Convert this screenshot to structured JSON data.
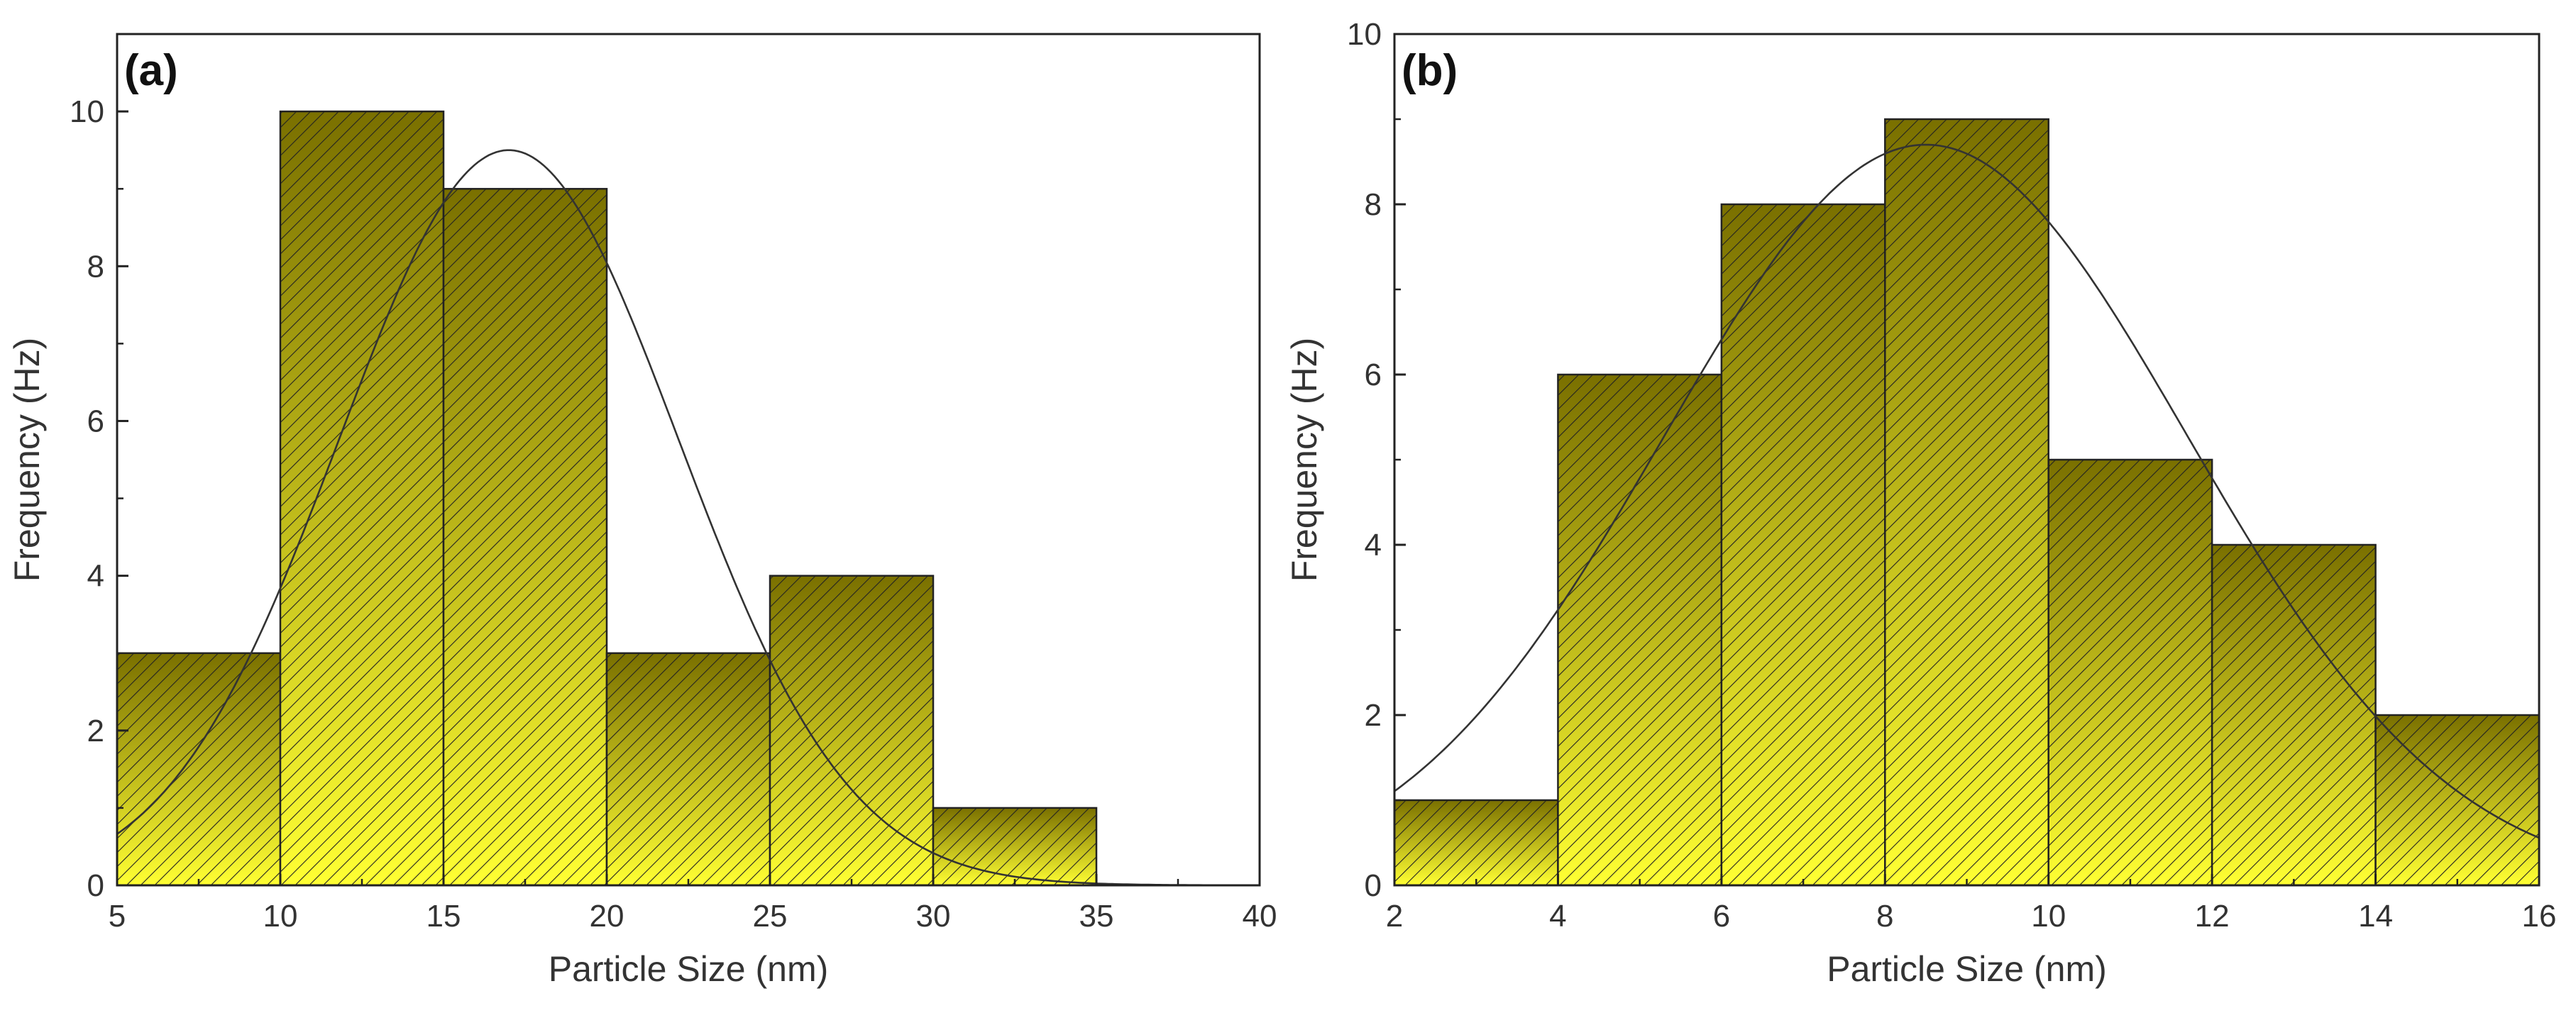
{
  "colors": {
    "bar_top": "#7a7000",
    "bar_bottom": "#ffff33",
    "hatch": "#222222",
    "axis": "#222222",
    "curve": "#333333"
  },
  "chart_data": [
    {
      "type": "bar",
      "panel_label": "(a)",
      "xlabel": "Particle Size (nm)",
      "ylabel": "Frequency (Hz)",
      "xlim": [
        5,
        40
      ],
      "ylim": [
        0,
        11
      ],
      "xticks": [
        5,
        10,
        15,
        20,
        25,
        30,
        35,
        40
      ],
      "xtick_labels": [
        "5",
        "10",
        "15",
        "20",
        "25",
        "30",
        "35",
        "40"
      ],
      "yticks": [
        0,
        2,
        4,
        6,
        8,
        10
      ],
      "ytick_labels": [
        "0",
        "2",
        "4",
        "6",
        "8",
        "10"
      ],
      "bins": [
        [
          5,
          10
        ],
        [
          10,
          15
        ],
        [
          15,
          20
        ],
        [
          20,
          25
        ],
        [
          25,
          30
        ],
        [
          30,
          35
        ]
      ],
      "values": [
        3,
        10,
        9,
        3,
        4,
        1
      ],
      "fit": {
        "type": "gaussian",
        "mean": 17,
        "sigma": 5.2,
        "peak": 9.5,
        "x_range": [
          5,
          38.5
        ]
      }
    },
    {
      "type": "bar",
      "panel_label": "(b)",
      "xlabel": "Particle Size (nm)",
      "ylabel": "Frequency (Hz)",
      "xlim": [
        2,
        16
      ],
      "ylim": [
        0,
        10
      ],
      "xticks": [
        2,
        4,
        6,
        8,
        10,
        12,
        14,
        16
      ],
      "xtick_labels": [
        "2",
        "4",
        "6",
        "8",
        "10",
        "12",
        "14",
        "16"
      ],
      "yticks": [
        0,
        2,
        4,
        6,
        8,
        10
      ],
      "ytick_labels": [
        "0",
        "2",
        "4",
        "6",
        "8",
        "10"
      ],
      "bins": [
        [
          2,
          4
        ],
        [
          4,
          6
        ],
        [
          6,
          8
        ],
        [
          8,
          10
        ],
        [
          10,
          12
        ],
        [
          12,
          14
        ],
        [
          14,
          16
        ]
      ],
      "values": [
        1,
        6,
        8,
        9,
        5,
        4,
        2
      ],
      "fit": {
        "type": "gaussian",
        "mean": 8.5,
        "sigma": 3.2,
        "peak": 8.7,
        "x_range": [
          2,
          16
        ]
      }
    }
  ]
}
